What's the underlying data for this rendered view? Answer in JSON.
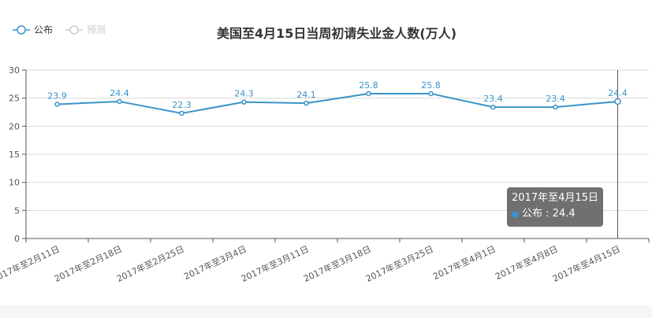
{
  "legend": {
    "items": [
      {
        "label": "公布",
        "color": "#3a93c9",
        "active": true
      },
      {
        "label": "预测",
        "color": "#cccccc",
        "active": false
      }
    ]
  },
  "tooltip": {
    "title": "2017年至4月15日",
    "series": "公布",
    "value": "24.4",
    "row": "公布 : 24.4"
  },
  "chart_data": {
    "type": "line",
    "title": "美国至4月15日当周初请失业金人数(万人)",
    "categories": [
      "2017年至2月11日",
      "2017年至2月18日",
      "2017年至2月25日",
      "2017年至3月4日",
      "2017年至3月11日",
      "2017年至3月18日",
      "2017年至3月25日",
      "2017年至4月1日",
      "2017年至4月8日",
      "2017年至4月15日"
    ],
    "series": [
      {
        "name": "公布",
        "values": [
          23.9,
          24.4,
          22.3,
          24.3,
          24.1,
          25.8,
          25.8,
          23.4,
          23.4,
          24.4
        ],
        "color": "#3a93c9"
      }
    ],
    "ylim": [
      0,
      30
    ],
    "yticks": [
      0,
      5,
      10,
      15,
      20,
      25,
      30
    ],
    "grid": true,
    "legend_position": "top-left",
    "xlabel": "",
    "ylabel": ""
  }
}
